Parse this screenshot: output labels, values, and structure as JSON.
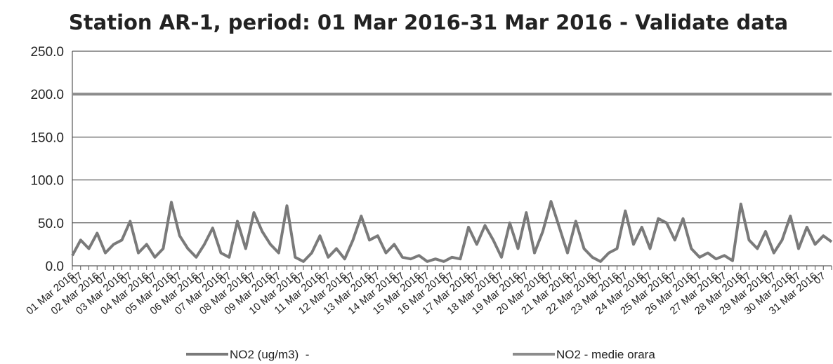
{
  "chart_data": {
    "type": "line",
    "title": "Station AR-1, period: 01 Mar 2016-31 Mar 2016 - Validate data",
    "categories": [
      "01 Mar 2016",
      "07",
      null,
      "02 Mar 2016",
      "07",
      null,
      "03 Mar 2016",
      "07",
      null,
      "04 Mar 2016",
      "07",
      null,
      "05 Mar 2016",
      "07",
      null,
      "06 Mar 2016",
      "07",
      null,
      "07 Mar 2016",
      "07",
      null,
      "08 Mar 2016",
      "07",
      null,
      "09 Mar 2016",
      "07",
      null,
      "10 Mar 2016",
      "07",
      null,
      "11 Mar 2016",
      "07",
      null,
      "12 Mar 2016",
      "07",
      null,
      "13 Mar 2016",
      "07",
      null,
      "14 Mar 2016",
      "07",
      null,
      "15 Mar 2016",
      "07",
      null,
      "16 Mar 2016",
      "07",
      null,
      "17 Mar 2016",
      "07",
      null,
      "18 Mar 2016",
      "07",
      null,
      "19 Mar 2016",
      "07",
      null,
      "20 Mar 2016",
      "07",
      null,
      "21 Mar 2016",
      "07",
      null,
      "22 Mar 2016",
      "07",
      null,
      "23 Mar 2016",
      "07",
      null,
      "24 Mar 2016",
      "07",
      null,
      "25 Mar 2016",
      "07",
      null,
      "26 Mar 2016",
      "07",
      null,
      "27 Mar 2016",
      "07",
      null,
      "28 Mar 2016",
      "07",
      null,
      "29 Mar 2016",
      "07",
      null,
      "30 Mar 2016",
      "07",
      null,
      "31 Mar 2016",
      "07",
      null
    ],
    "series": [
      {
        "name": "NO2 (ug/m3)  -",
        "color": "#7a7a7a",
        "values": [
          12,
          30,
          20,
          38,
          15,
          25,
          30,
          52,
          15,
          25,
          10,
          20,
          74,
          35,
          20,
          10,
          25,
          44,
          15,
          10,
          52,
          20,
          62,
          40,
          25,
          15,
          70,
          10,
          5,
          15,
          35,
          10,
          20,
          8,
          30,
          58,
          30,
          35,
          15,
          25,
          10,
          8,
          12,
          5,
          8,
          5,
          10,
          8,
          45,
          25,
          47,
          30,
          10,
          50,
          20,
          62,
          15,
          40,
          75,
          45,
          15,
          52,
          20,
          10,
          5,
          15,
          20,
          64,
          25,
          45,
          20,
          55,
          50,
          30,
          55,
          20,
          10,
          15,
          8,
          12,
          6,
          72,
          30,
          20,
          40,
          15,
          30,
          58,
          20,
          45,
          25,
          35,
          28
        ]
      },
      {
        "name": "NO2 - medie orara",
        "color": "#8c8c8c",
        "values": [
          200,
          200,
          200,
          200,
          200,
          200,
          200,
          200,
          200,
          200,
          200,
          200,
          200,
          200,
          200,
          200,
          200,
          200,
          200,
          200,
          200,
          200,
          200,
          200,
          200,
          200,
          200,
          200,
          200,
          200,
          200,
          200,
          200,
          200,
          200,
          200,
          200,
          200,
          200,
          200,
          200,
          200,
          200,
          200,
          200,
          200,
          200,
          200,
          200,
          200,
          200,
          200,
          200,
          200,
          200,
          200,
          200,
          200,
          200,
          200,
          200,
          200,
          200,
          200,
          200,
          200,
          200,
          200,
          200,
          200,
          200,
          200,
          200,
          200,
          200,
          200,
          200,
          200,
          200,
          200,
          200,
          200,
          200,
          200,
          200,
          200,
          200,
          200,
          200,
          200,
          200,
          200,
          200
        ]
      }
    ],
    "ylim": [
      0,
      250
    ],
    "yticks": [
      {
        "value": 0,
        "label": "0.0"
      },
      {
        "value": 50,
        "label": "50.0"
      },
      {
        "value": 100,
        "label": "100.0"
      },
      {
        "value": 150,
        "label": "150.0"
      },
      {
        "value": 200,
        "label": "200.0"
      },
      {
        "value": 250,
        "label": "250.0"
      }
    ],
    "grid": true
  }
}
